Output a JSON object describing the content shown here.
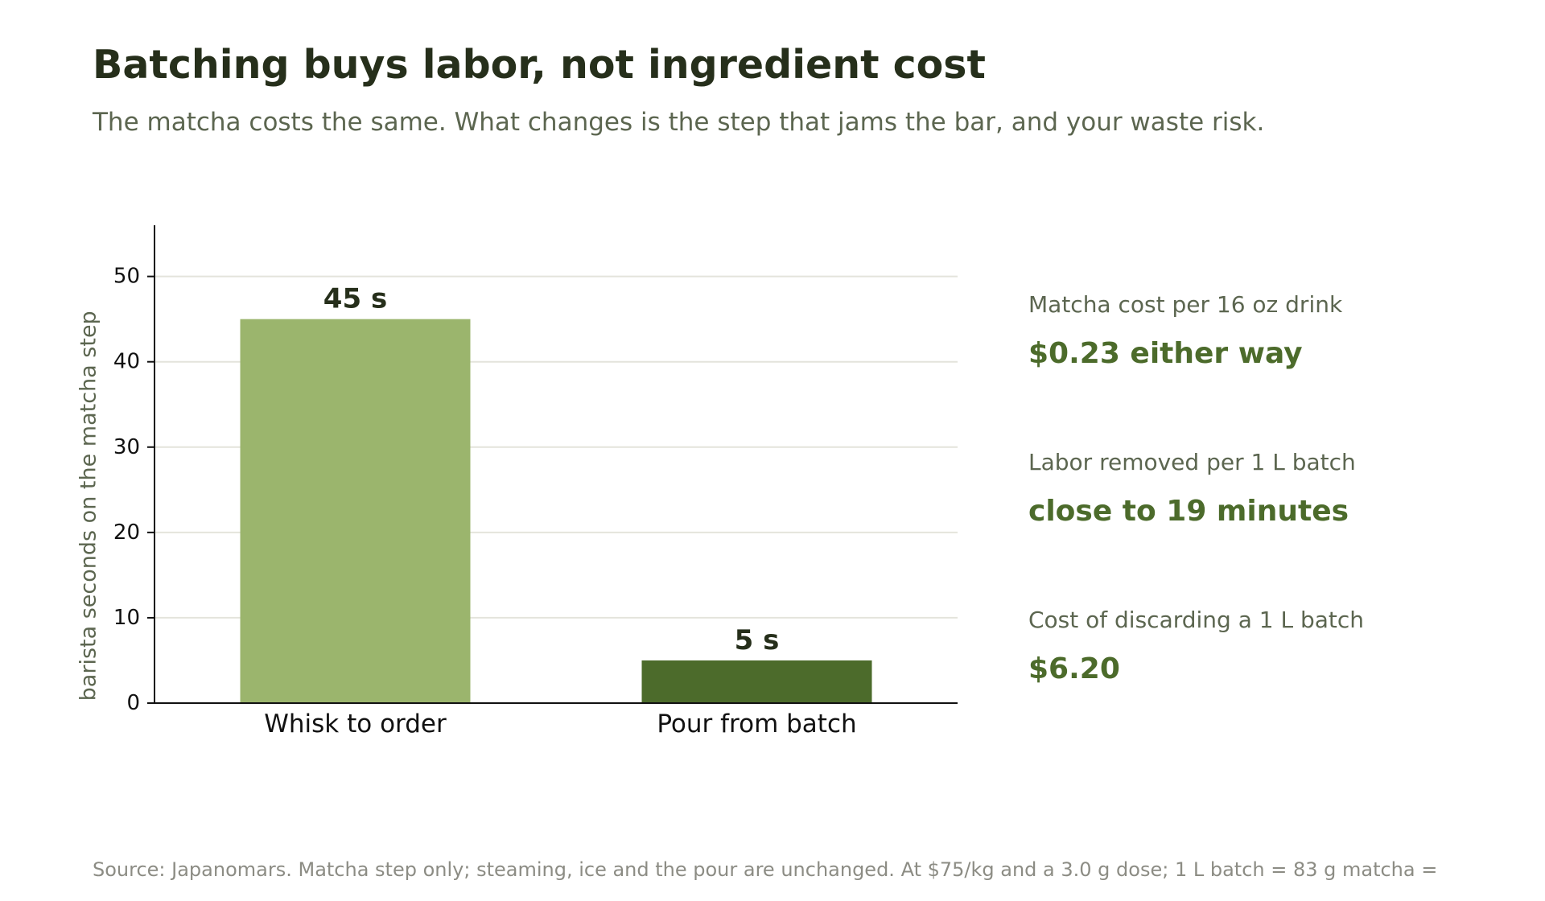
{
  "title": "Batching buys labor, not ingredient cost",
  "subtitle": "The matcha costs the same. What changes is the step that jams the bar, and your waste risk.",
  "chart_data": {
    "type": "bar",
    "categories": [
      "Whisk to order",
      "Pour from batch"
    ],
    "values": [
      45,
      5
    ],
    "value_labels": [
      "45 s",
      "5 s"
    ],
    "ylabel": "barista seconds on the matcha step",
    "xlabel": "",
    "ylim": [
      0,
      56
    ],
    "yticks": [
      0,
      10,
      20,
      30,
      40,
      50
    ],
    "grid": true,
    "bar_colors": [
      "#9bb56d",
      "#4c6b2b"
    ]
  },
  "stats": [
    {
      "label": "Matcha cost per 16 oz drink",
      "value": "$0.23 either way"
    },
    {
      "label": "Labor removed per 1 L batch",
      "value": "close to 19 minutes"
    },
    {
      "label": "Cost of discarding a 1 L batch",
      "value": "$6.20"
    }
  ],
  "source": "Source: Japanomars. Matcha step only; steaming, ice and the pour are unchanged. At $75/kg and a 3.0 g dose; 1 L batch = 83 g matcha =",
  "colors": {
    "title": "#262f1b",
    "muted": "#5c6650",
    "accent": "#4c6b2b",
    "source": "#8c8c84",
    "grid": "#e4e4dc",
    "axis": "#111111"
  }
}
